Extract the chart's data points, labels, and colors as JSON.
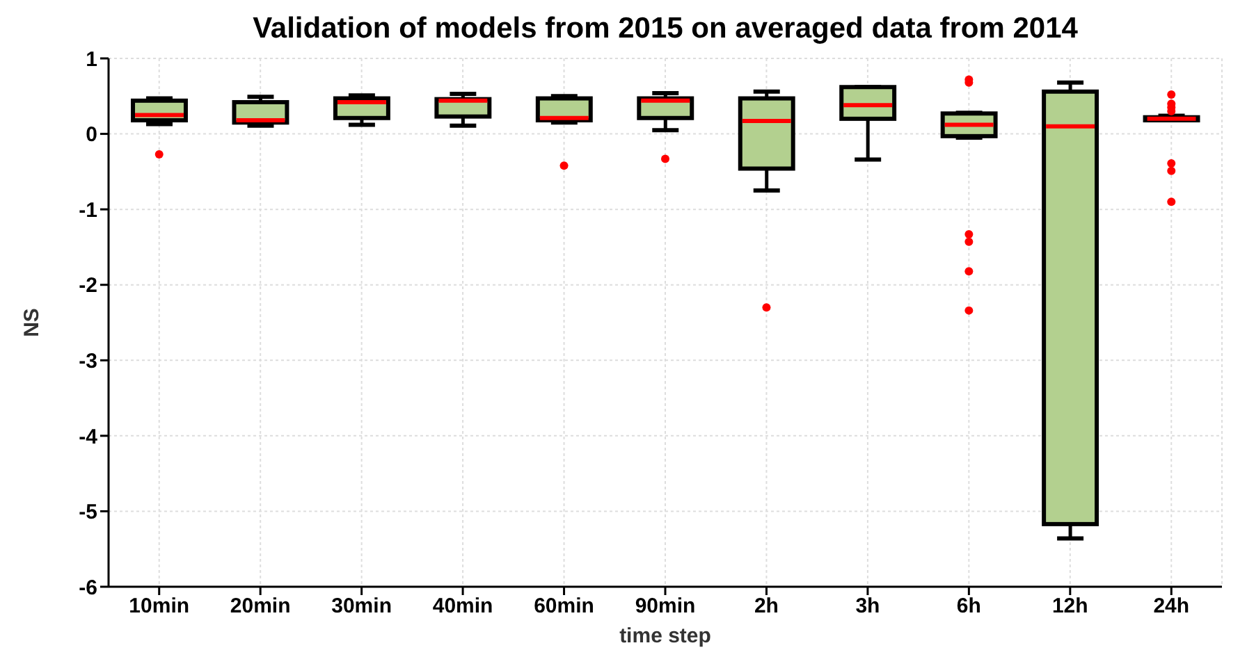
{
  "chart_data": {
    "type": "box",
    "title": "Validation of models from 2015 on averaged data from 2014",
    "xlabel": "time step",
    "ylabel": "NS",
    "categories": [
      "10min",
      "20min",
      "30min",
      "40min",
      "60min",
      "90min",
      "2h",
      "3h",
      "6h",
      "12h",
      "24h"
    ],
    "series": [
      {
        "color": "#b3d08f",
        "boxes": [
          {
            "low": 0.13,
            "q1": 0.18,
            "median": 0.25,
            "q3": 0.44,
            "high": 0.47,
            "outliers": [
              -0.27
            ]
          },
          {
            "low": 0.11,
            "q1": 0.15,
            "median": 0.18,
            "q3": 0.42,
            "high": 0.49
          },
          {
            "low": 0.12,
            "q1": 0.21,
            "median": 0.42,
            "q3": 0.47,
            "high": 0.51
          },
          {
            "low": 0.11,
            "q1": 0.23,
            "median": 0.44,
            "q3": 0.46,
            "high": 0.53
          },
          {
            "low": 0.15,
            "q1": 0.18,
            "median": 0.21,
            "q3": 0.47,
            "high": 0.5,
            "outliers": [
              -0.42
            ]
          },
          {
            "low": 0.05,
            "q1": 0.21,
            "median": 0.44,
            "q3": 0.47,
            "high": 0.54,
            "outliers": [
              -0.33
            ]
          },
          {
            "low": -0.75,
            "q1": -0.46,
            "median": 0.17,
            "q3": 0.47,
            "high": 0.56,
            "outliers": [
              -2.3
            ]
          },
          {
            "low": -0.34,
            "q1": 0.2,
            "median": 0.38,
            "q3": 0.62,
            "high": 0.62
          },
          {
            "low": -0.05,
            "q1": -0.03,
            "median": 0.12,
            "q3": 0.27,
            "high": 0.28,
            "outliers": [
              0.72,
              0.68,
              -1.33,
              -1.43,
              -1.82,
              -2.34
            ]
          },
          {
            "low": -5.36,
            "q1": -5.17,
            "median": 0.1,
            "q3": 0.56,
            "high": 0.68
          },
          {
            "low": 0.18,
            "q1": 0.18,
            "median": 0.2,
            "q3": 0.22,
            "high": 0.24,
            "outliers": [
              0.52,
              0.4,
              0.35,
              0.3,
              -0.39,
              -0.49,
              -0.9
            ]
          }
        ]
      }
    ],
    "ylim": [
      -6,
      1
    ],
    "yticks": [
      -6,
      -5,
      -4,
      -3,
      -2,
      -1,
      0,
      1
    ],
    "grid": true
  }
}
